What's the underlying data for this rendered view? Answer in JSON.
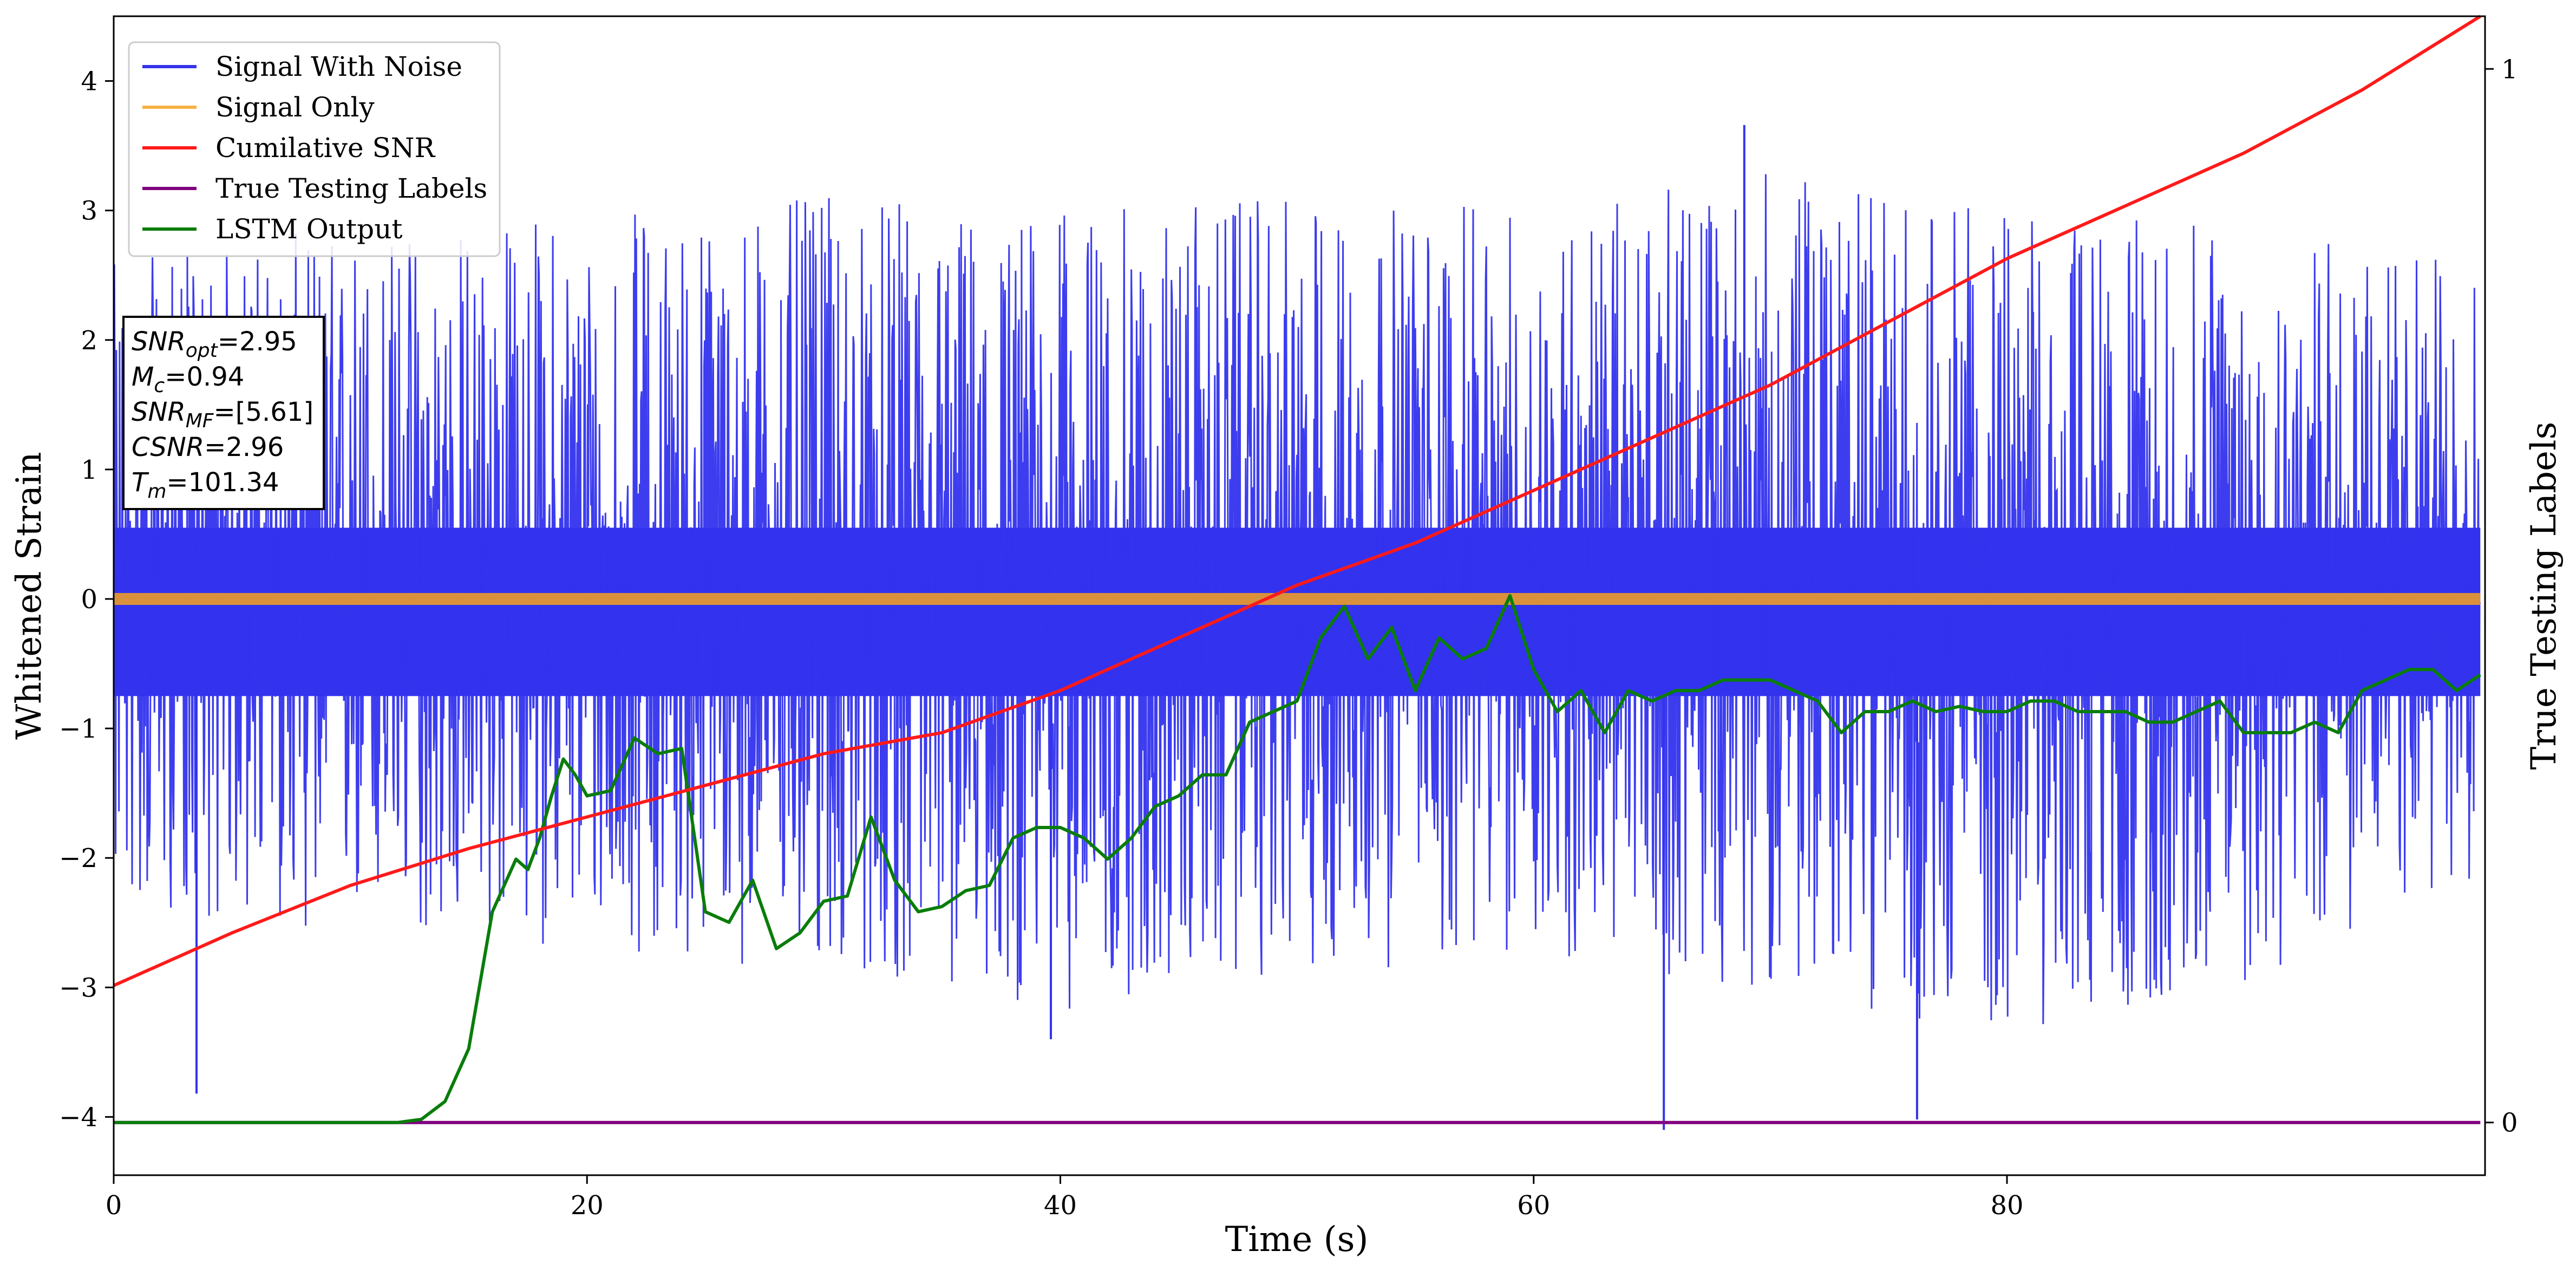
{
  "chart_data": {
    "type": "line",
    "xlabel": "Time (s)",
    "ylabel_left": "Whitened Strain",
    "ylabel_right": "True Testing Labels",
    "xlim": [
      0,
      100.2
    ],
    "ylim_left": [
      -4.45,
      4.5
    ],
    "ylim_right": [
      -0.05,
      1.05
    ],
    "x_ticks": [
      0,
      20,
      40,
      60,
      80
    ],
    "y_ticks_left": [
      -4,
      -3,
      -2,
      -1,
      0,
      1,
      2,
      3,
      4
    ],
    "y_ticks_right": [
      0,
      1
    ],
    "grid": false,
    "legend_position": "top-left",
    "series": [
      {
        "name": "Signal With Noise",
        "color": "#3333ee",
        "axis": "left",
        "description_envelope": {
          "x": [
            0,
            10,
            20,
            30,
            40,
            50,
            60,
            70,
            80,
            90,
            100
          ],
          "upper": [
            2.6,
            2.9,
            3.0,
            3.1,
            3.0,
            3.1,
            3.0,
            3.3,
            3.0,
            2.9,
            2.6
          ],
          "lower": [
            -2.4,
            -2.6,
            -2.7,
            -2.9,
            -3.2,
            -2.9,
            -2.8,
            -3.0,
            -3.4,
            -3.0,
            -2.2
          ]
        },
        "spikes": [
          {
            "x": 3.5,
            "y": -3.82
          },
          {
            "x": 65.5,
            "y": -4.1
          },
          {
            "x": 76.2,
            "y": -4.02
          },
          {
            "x": 68.9,
            "y": 3.66
          },
          {
            "x": 39.6,
            "y": -3.4
          }
        ]
      },
      {
        "name": "Signal Only",
        "color": "#f5b342",
        "axis": "left",
        "x": [
          0,
          100
        ],
        "y": [
          0,
          0
        ]
      },
      {
        "name": "Cumilative SNR",
        "color": "#ff1a1a",
        "axis": "right",
        "x": [
          0,
          5,
          10,
          15,
          20,
          25,
          30,
          35,
          40,
          45,
          50,
          55,
          60,
          65,
          70,
          75,
          80,
          85,
          90,
          95,
          100
        ],
        "y": [
          0.13,
          0.18,
          0.225,
          0.26,
          0.29,
          0.32,
          0.35,
          0.37,
          0.41,
          0.46,
          0.51,
          0.55,
          0.6,
          0.65,
          0.7,
          0.76,
          0.82,
          0.87,
          0.92,
          0.98,
          1.05
        ]
      },
      {
        "name": "True Testing Labels",
        "color": "#800080",
        "axis": "right",
        "x": [
          0,
          100
        ],
        "y": [
          0,
          0
        ]
      },
      {
        "name": "LSTM Output",
        "color": "#0a7d0a",
        "axis": "right",
        "x": [
          0,
          10,
          12,
          13,
          14,
          15,
          16,
          17,
          17.5,
          18,
          18.5,
          19,
          19.5,
          20,
          21,
          22,
          23,
          24,
          25,
          26,
          27,
          28,
          29,
          30,
          31,
          32,
          33,
          34,
          35,
          36,
          37,
          38,
          39,
          40,
          41,
          42,
          43,
          44,
          45,
          46,
          47,
          48,
          49,
          50,
          51,
          52,
          53,
          54,
          55,
          56,
          57,
          58,
          59,
          60,
          61,
          62,
          63,
          64,
          65,
          66,
          67,
          68,
          69,
          70,
          71,
          72,
          73,
          74,
          75,
          76,
          77,
          78,
          79,
          80,
          81,
          82,
          83,
          84,
          85,
          86,
          87,
          88,
          89,
          90,
          91,
          92,
          93,
          94,
          95,
          96,
          97,
          98,
          99,
          100
        ],
        "y": [
          0.0,
          0.0,
          0.0,
          0.003,
          0.02,
          0.07,
          0.2,
          0.25,
          0.24,
          0.27,
          0.31,
          0.345,
          0.33,
          0.31,
          0.315,
          0.365,
          0.35,
          0.355,
          0.2,
          0.19,
          0.23,
          0.165,
          0.18,
          0.21,
          0.215,
          0.29,
          0.23,
          0.2,
          0.205,
          0.22,
          0.225,
          0.27,
          0.28,
          0.28,
          0.27,
          0.25,
          0.27,
          0.3,
          0.31,
          0.33,
          0.33,
          0.38,
          0.39,
          0.4,
          0.46,
          0.49,
          0.44,
          0.47,
          0.41,
          0.46,
          0.44,
          0.45,
          0.5,
          0.43,
          0.39,
          0.41,
          0.37,
          0.41,
          0.4,
          0.41,
          0.41,
          0.42,
          0.42,
          0.42,
          0.41,
          0.4,
          0.37,
          0.39,
          0.39,
          0.4,
          0.39,
          0.395,
          0.39,
          0.39,
          0.4,
          0.4,
          0.39,
          0.39,
          0.39,
          0.38,
          0.38,
          0.39,
          0.4,
          0.37,
          0.37,
          0.37,
          0.38,
          0.37,
          0.41,
          0.42,
          0.43,
          0.43,
          0.41,
          0.425
        ]
      }
    ],
    "annotation": {
      "lines": [
        {
          "sym": "SNR",
          "sub": "opt",
          "value": "=2.95"
        },
        {
          "sym": "M",
          "sub": "c",
          "value": "=0.94"
        },
        {
          "sym": "SNR",
          "sub": "MF",
          "value": "=[5.61]"
        },
        {
          "sym": "CSNR",
          "sub": "",
          "value": "=2.96"
        },
        {
          "sym": "T",
          "sub": "m",
          "value": "=101.34"
        }
      ]
    }
  }
}
